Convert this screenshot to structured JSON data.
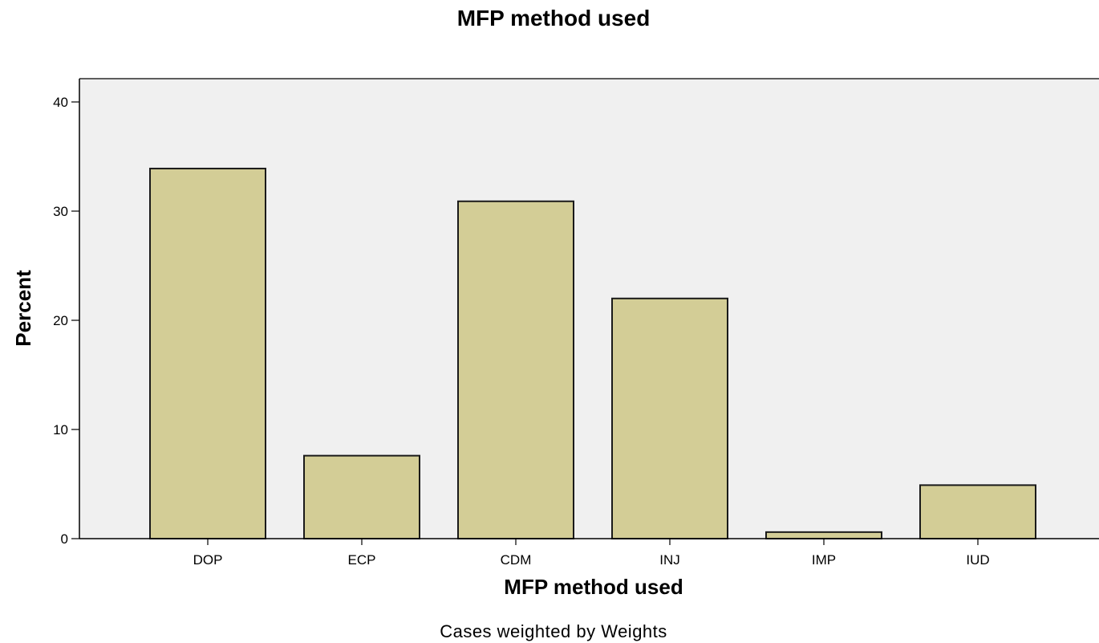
{
  "chart_data": {
    "type": "bar",
    "title": "MFP method used",
    "xlabel": "MFP method used",
    "ylabel": "Percent",
    "categories": [
      "DOP",
      "ECP",
      "CDM",
      "INJ",
      "IMP",
      "IUD"
    ],
    "values": [
      33.9,
      7.6,
      30.9,
      22.0,
      0.6,
      4.9
    ],
    "ylim": [
      0,
      42
    ],
    "yticks": [
      0,
      10,
      20,
      30,
      40
    ],
    "ytick_labels": [
      "0",
      "10",
      "20",
      "30",
      "40"
    ],
    "grid": false,
    "footnote": "Cases weighted by Weights",
    "colors": {
      "bar_fill": "#d3cd96",
      "bar_stroke": "#1a1a1a",
      "plot_background": "#f0f0f0",
      "axis": "#000000"
    }
  }
}
